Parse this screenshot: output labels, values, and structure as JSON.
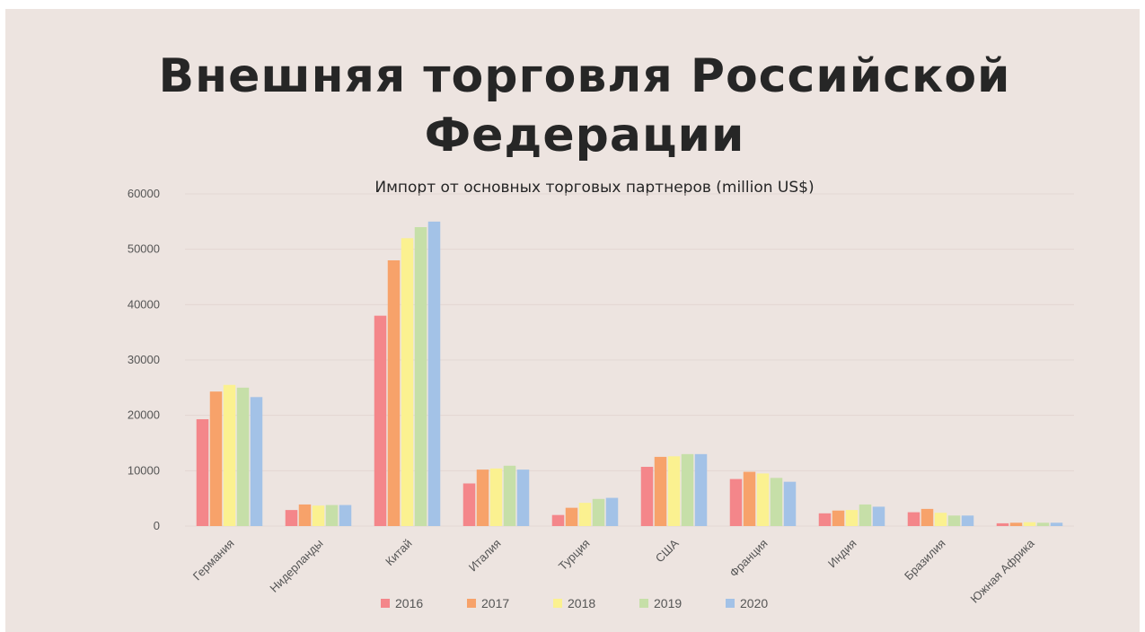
{
  "page": {
    "title_line1": "Внешняя торговля Российской",
    "title_line2": "Федерации"
  },
  "chart_data": {
    "type": "bar",
    "subtitle": "Импорт от основных торговых партнеров (million US$)",
    "xlabel": "",
    "ylabel": "",
    "ylim": [
      0,
      60000
    ],
    "yticks": [
      0,
      10000,
      20000,
      30000,
      40000,
      50000,
      60000
    ],
    "grid": true,
    "legend_position": "bottom",
    "categories": [
      "Германия",
      "Нидерланды",
      "Китай",
      "Италия",
      "Турция",
      "США",
      "Франция",
      "Индия",
      "Бразилия",
      "Южная Африка"
    ],
    "series": [
      {
        "name": "2016",
        "color": "#f4868a",
        "values": [
          19300,
          2900,
          38000,
          7700,
          2000,
          10700,
          8500,
          2300,
          2500,
          500
        ]
      },
      {
        "name": "2017",
        "color": "#f7a26a",
        "values": [
          24300,
          3900,
          48000,
          10200,
          3300,
          12500,
          9800,
          2800,
          3100,
          600
        ]
      },
      {
        "name": "2018",
        "color": "#fbf190",
        "values": [
          25500,
          3700,
          52000,
          10400,
          4200,
          12600,
          9500,
          2900,
          2400,
          700
        ]
      },
      {
        "name": "2019",
        "color": "#c6dfa8",
        "values": [
          25000,
          3800,
          54000,
          10900,
          4900,
          13000,
          8700,
          3900,
          1900,
          600
        ]
      },
      {
        "name": "2020",
        "color": "#a3c2e7",
        "values": [
          23300,
          3800,
          55000,
          10200,
          5100,
          13000,
          8000,
          3500,
          1900,
          600
        ]
      }
    ]
  }
}
